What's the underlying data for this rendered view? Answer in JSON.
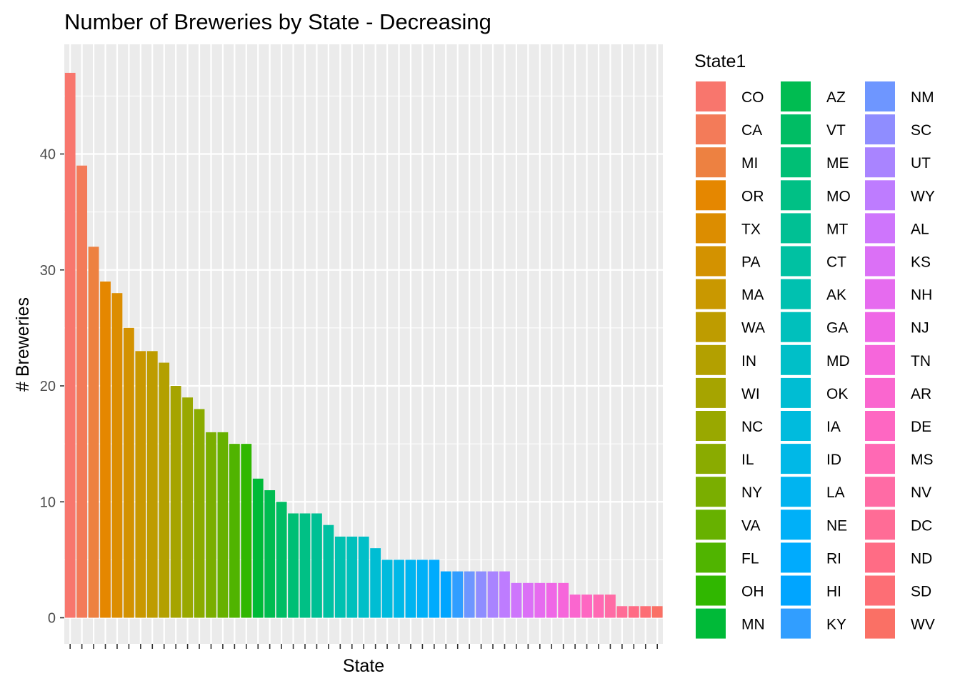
{
  "chart_data": {
    "type": "bar",
    "title": "Number of Breweries by State - Decreasing",
    "xlabel": "State",
    "ylabel": "# Breweries",
    "yticks": [
      0,
      10,
      20,
      30,
      40
    ],
    "ylim": [
      0,
      47
    ],
    "grid": true,
    "legend_position": "right",
    "legend_title": "State1",
    "legend_columns": 3,
    "categories": [
      "CO",
      "CA",
      "MI",
      "OR",
      "TX",
      "PA",
      "MA",
      "WA",
      "IN",
      "WI",
      "NC",
      "IL",
      "NY",
      "VA",
      "FL",
      "OH",
      "MN",
      "AZ",
      "VT",
      "ME",
      "MO",
      "MT",
      "CT",
      "AK",
      "GA",
      "MD",
      "OK",
      "IA",
      "ID",
      "LA",
      "NE",
      "RI",
      "HI",
      "KY",
      "NM",
      "SC",
      "UT",
      "WY",
      "AL",
      "KS",
      "NH",
      "NJ",
      "TN",
      "AR",
      "DE",
      "MS",
      "NV",
      "DC",
      "ND",
      "SD",
      "WV"
    ],
    "values": [
      47,
      39,
      32,
      29,
      28,
      25,
      23,
      23,
      22,
      20,
      19,
      18,
      16,
      16,
      15,
      15,
      12,
      11,
      10,
      9,
      9,
      9,
      8,
      7,
      7,
      7,
      6,
      5,
      5,
      5,
      5,
      5,
      4,
      4,
      4,
      4,
      4,
      4,
      3,
      3,
      3,
      3,
      3,
      2,
      2,
      2,
      2,
      1,
      1,
      1,
      1
    ],
    "colors": [
      "#F8766D",
      "#F37B59",
      "#ED8141",
      "#E58700",
      "#DC8D00",
      "#D39200",
      "#C99800",
      "#BE9C00",
      "#B3A000",
      "#A6A400",
      "#99A800",
      "#8AAB00",
      "#7AAE00",
      "#67B100",
      "#50B400",
      "#30B700",
      "#00BA38",
      "#00BC51",
      "#00BD64",
      "#00BF75",
      "#00C085",
      "#00C094",
      "#00C1A2",
      "#00C1B0",
      "#00C0BC",
      "#00BFC8",
      "#00BDD3",
      "#00BBDD",
      "#00B8E7",
      "#00B4F0",
      "#00B0F8",
      "#00ABFD",
      "#00A5FF",
      "#319EFF",
      "#6E96FF",
      "#8F8DFF",
      "#A984FF",
      "#BE7CFF",
      "#CE75FC",
      "#DB70F6",
      "#E66BEF",
      "#EF67E6",
      "#F666DB",
      "#FA66CF",
      "#FE67C2",
      "#FF69B4",
      "#FF6BA5",
      "#FF6C96",
      "#FF6C85",
      "#FD6E75",
      "#FA7065"
    ]
  }
}
